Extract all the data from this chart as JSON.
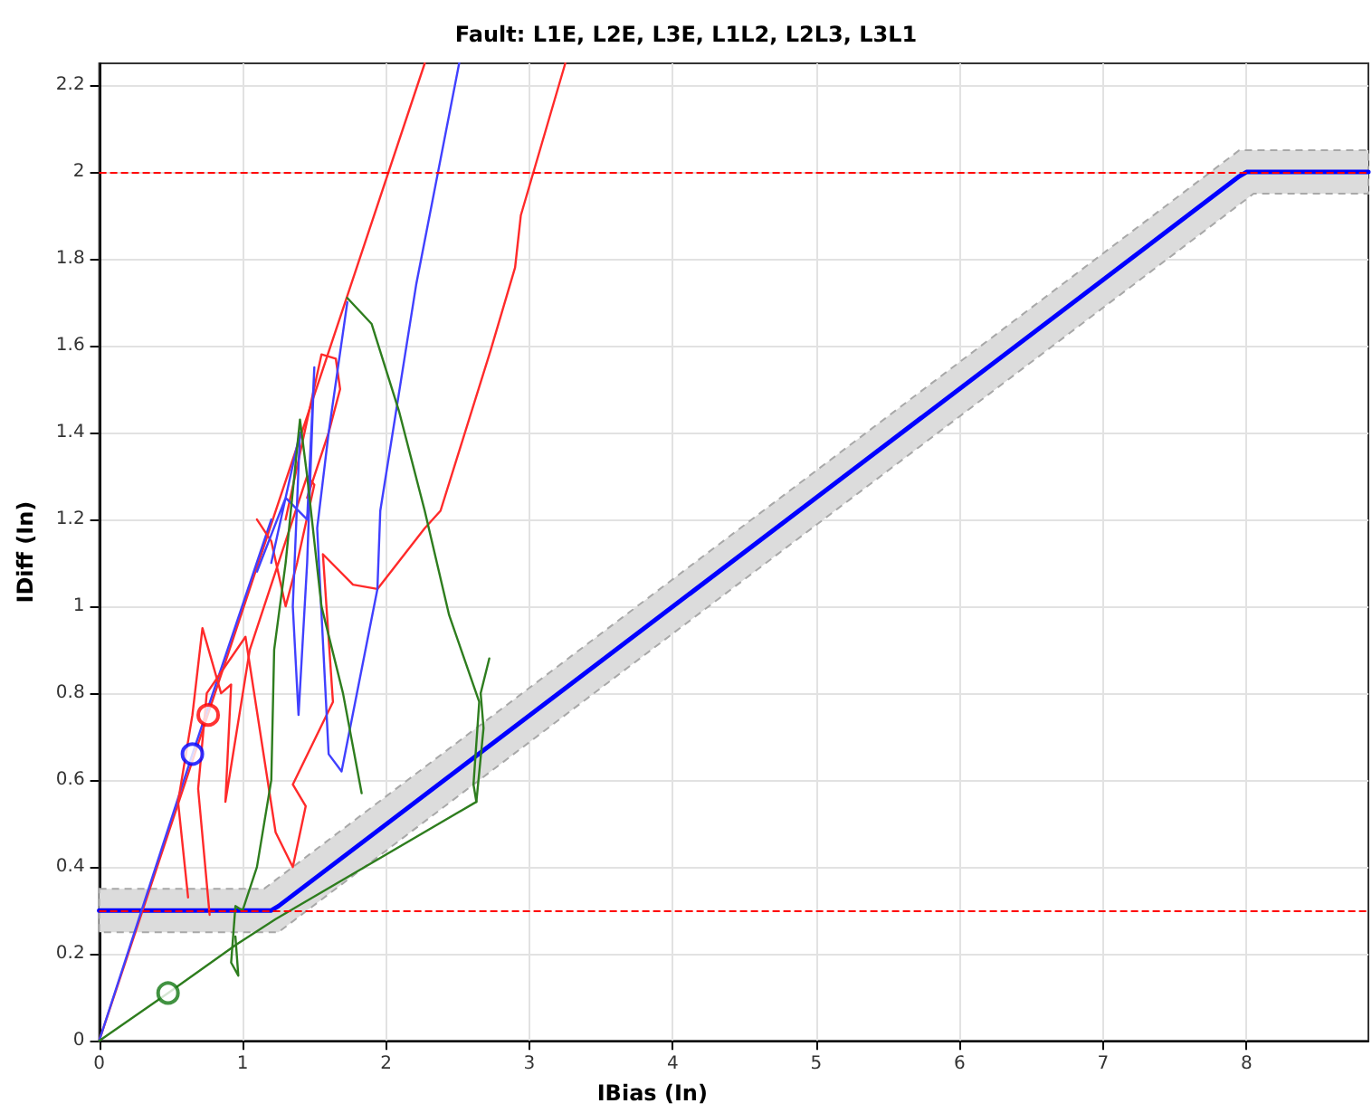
{
  "chart_data": {
    "type": "line",
    "title": "Fault: L1E, L2E, L3E, L1L2, L2L3, L3L1",
    "xlabel": "IBias (In)",
    "ylabel": "IDiff (In)",
    "xlim": [
      0,
      8.85
    ],
    "ylim": [
      0,
      2.25
    ],
    "xticks": [
      0,
      1,
      2,
      3,
      4,
      5,
      6,
      7,
      8
    ],
    "yticks": [
      0,
      0.2,
      0.4,
      0.6,
      0.8,
      1,
      1.2,
      1.4,
      1.6,
      1.8,
      2,
      2.2
    ],
    "grid": true,
    "marker": "none",
    "line_style": "solid",
    "ref_lines": [
      {
        "axis": "y",
        "value": 2,
        "color": "#ff0000",
        "line_style": "dashed"
      },
      {
        "axis": "y",
        "value": 0.3,
        "color": "#ff0000",
        "line_style": "dashed"
      }
    ],
    "series": [
      {
        "color": "#0000ff",
        "x": [
          0,
          1.15,
          1.2,
          1.25,
          7.95,
          8,
          8.05,
          8.85
        ],
        "values": [
          0.3,
          0.3,
          0.3,
          0.31,
          1.99,
          2,
          2,
          2
        ],
        "lower": [
          0.25,
          0.25,
          0.25,
          0.25,
          1.925,
          1.9375,
          1.95,
          1.95
        ],
        "upper": [
          0.35,
          0.35,
          0.3625,
          0.375,
          2.05,
          2.05,
          2.05,
          2.05
        ]
      },
      {
        "color": "#ff2a2a",
        "x": [
          0,
          2.27
        ],
        "values": [
          0,
          2.25
        ]
      },
      {
        "color": "#4040ff",
        "x": [
          0,
          0.65,
          1.2
        ],
        "values": [
          0,
          0.66,
          1.2
        ]
      },
      {
        "color": "#2e7d1e",
        "x": [
          0,
          0.48,
          0.95,
          1.23,
          2.63,
          2.68,
          2.66,
          2.72
        ],
        "values": [
          0,
          0.11,
          0.22,
          0.28,
          0.55,
          0.72,
          0.8,
          0.88
        ]
      },
      {
        "color": "#ff2a2a",
        "x": [
          0.77,
          0.69,
          0.75,
          1.02,
          1.23,
          1.35,
          1.44,
          1.35,
          1.63,
          1.56,
          1.77,
          1.94,
          2.27,
          2.38,
          2.73,
          2.9,
          2.94,
          3.25
        ],
        "values": [
          0.29,
          0.58,
          0.8,
          0.93,
          0.48,
          0.4,
          0.54,
          0.59,
          0.78,
          1.12,
          1.05,
          1.04,
          1.18,
          1.22,
          1.59,
          1.78,
          1.9,
          2.25
        ]
      },
      {
        "color": "#ff2a2a",
        "x": [
          0.62,
          0.55,
          0.65,
          0.72,
          0.85,
          0.92,
          0.88,
          1.05,
          1.35,
          1.45,
          1.5,
          1.38,
          1.3,
          1.2,
          1.1
        ],
        "values": [
          0.33,
          0.55,
          0.75,
          0.95,
          0.8,
          0.82,
          0.55,
          0.9,
          1.2,
          1.3,
          1.28,
          1.1,
          1.0,
          1.15,
          1.2
        ]
      },
      {
        "color": "#ff2a2a",
        "x": [
          1.3,
          1.55,
          1.65,
          1.68,
          1.6,
          1.5,
          1.45
        ],
        "values": [
          1.2,
          1.58,
          1.57,
          1.5,
          1.4,
          1.3,
          1.25
        ]
      },
      {
        "color": "#4040ff",
        "x": [
          1.73,
          1.6,
          1.52,
          1.6,
          1.69,
          1.94,
          1.96,
          2.21,
          2.51
        ],
        "values": [
          1.7,
          1.4,
          1.18,
          0.66,
          0.62,
          1.04,
          1.22,
          1.74,
          2.25
        ]
      },
      {
        "color": "#4040ff",
        "x": [
          1.2,
          1.4,
          1.35,
          1.39,
          1.45,
          1.5,
          1.45,
          1.3,
          1.1
        ],
        "values": [
          1.1,
          1.4,
          1.0,
          0.75,
          1.1,
          1.55,
          1.2,
          1.25,
          1.08
        ]
      },
      {
        "color": "#2e7d1e",
        "x": [
          1.73,
          1.9,
          2.09,
          2.27,
          2.44,
          2.65,
          2.61,
          2.63
        ],
        "values": [
          1.71,
          1.65,
          1.45,
          1.22,
          0.98,
          0.78,
          0.59,
          0.55
        ]
      },
      {
        "color": "#2e7d1e",
        "x": [
          1.83,
          1.7,
          1.55,
          1.45,
          1.4,
          1.3,
          1.22,
          1.2,
          1.1,
          1.0,
          0.95,
          0.92,
          0.97,
          0.95
        ],
        "values": [
          0.57,
          0.8,
          1.0,
          1.3,
          1.43,
          1.1,
          0.9,
          0.6,
          0.4,
          0.3,
          0.31,
          0.18,
          0.15,
          0.24
        ]
      },
      {
        "type": "scatter",
        "marker": "circle",
        "color": "#ff0000",
        "x": [
          0.76
        ],
        "values": [
          0.75
        ]
      },
      {
        "type": "scatter",
        "marker": "circle",
        "color": "#0000ff",
        "x": [
          0.65
        ],
        "values": [
          0.66
        ]
      },
      {
        "type": "scatter",
        "marker": "circle",
        "color": "#117711",
        "x": [
          0.48
        ],
        "values": [
          0.11
        ]
      }
    ]
  }
}
